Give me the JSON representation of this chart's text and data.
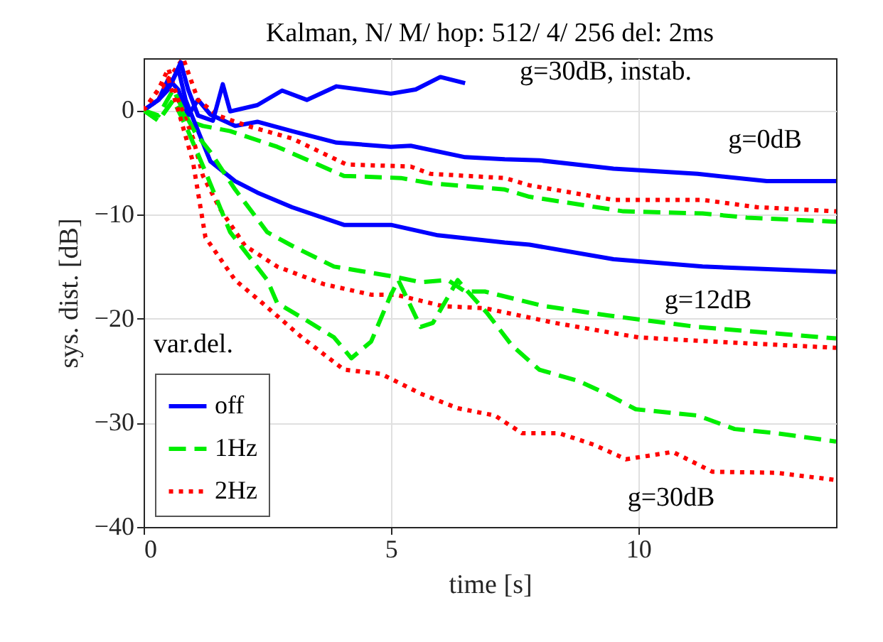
{
  "chart_data": {
    "type": "line",
    "title": "Kalman, N/ M/ hop: 512/ 4/ 256 del: 2ms",
    "xlabel": "time [s]",
    "ylabel": "sys. dist. [dB]",
    "xlim": [
      0,
      14
    ],
    "xticks": [
      0,
      5,
      10
    ],
    "ylim": [
      -40,
      5
    ],
    "yticks": [
      -40,
      -30,
      -20,
      -10,
      0
    ],
    "grid": true,
    "legend": "bottom left",
    "marker": "none",
    "annotations": [
      "g=30dB, instab.",
      "g=0dB",
      "g=12dB",
      "g=30dB",
      "var.del."
    ],
    "series": [
      {
        "name": "off",
        "color": "#0000ff",
        "line_style": "solid",
        "x": [
          0,
          0.3,
          0.5,
          0.7,
          0.9,
          1.1,
          1.35,
          1.85,
          2.3,
          3,
          3.9,
          5,
          5.4,
          6.5,
          7.3,
          8,
          9.5,
          11.2,
          12.6,
          14
        ],
        "values": [
          0,
          1,
          3,
          2,
          -0.5,
          1,
          -0.4,
          -1.5,
          -1.1,
          -2,
          -3.1,
          -3.5,
          -3.4,
          -4.5,
          -4.7,
          -4.8,
          -5.6,
          -6.1,
          -6.8,
          -6.8
        ]
      },
      {
        "name": "1Hz",
        "color": "#00ee00",
        "line_style": "dashed",
        "x": [
          0,
          0.3,
          0.6,
          0.9,
          1.2,
          1.75,
          2.7,
          4.05,
          5.2,
          5.8,
          7.3,
          7.8,
          9.7,
          11.3,
          12.2,
          14
        ],
        "values": [
          0,
          -1,
          1,
          -1,
          -1.5,
          -2,
          -3.5,
          -6.3,
          -6.5,
          -7,
          -7.6,
          -8.3,
          -9.7,
          -9.9,
          -10.3,
          -10.7
        ]
      },
      {
        "name": "2Hz",
        "color": "#ff0000",
        "line_style": "dotted",
        "x": [
          0,
          0.3,
          0.5,
          0.8,
          1.1,
          1.5,
          2.1,
          3,
          4.1,
          5.4,
          5.8,
          7.3,
          7.8,
          9.5,
          11.3,
          12.4,
          14
        ],
        "values": [
          0,
          1,
          3,
          5,
          1,
          -0.5,
          -1.5,
          -2.7,
          -5.2,
          -5.4,
          -6.1,
          -6.5,
          -7.2,
          -8.6,
          -8.6,
          -9.3,
          -9.7
        ]
      },
      {
        "color": "#0000ff",
        "line_style": "solid",
        "x": [
          0,
          0.3,
          0.5,
          0.7,
          0.85,
          1,
          1.35,
          1.85,
          2.3,
          3,
          4.05,
          5,
          5.95,
          7.3,
          7.8,
          9.5,
          11.3,
          14
        ],
        "values": [
          0,
          1,
          2,
          4,
          1,
          -0.8,
          -4.9,
          -6.8,
          -7.9,
          -9.3,
          -11,
          -11,
          -12,
          -12.7,
          -12.9,
          -14.3,
          -15,
          -15.5
        ]
      },
      {
        "color": "#00ee00",
        "line_style": "dashed",
        "x": [
          0,
          0.3,
          0.6,
          0.8,
          1.05,
          1.35,
          1.85,
          2.5,
          3,
          3.85,
          5.1,
          5.6,
          6.15,
          6.5,
          6.9,
          8.1,
          9.4,
          11.2,
          14
        ],
        "values": [
          0,
          -0.5,
          2,
          0,
          -2.2,
          -4,
          -7.6,
          -11.7,
          -13,
          -15,
          -16,
          -16.5,
          -16.3,
          -17.4,
          -17.4,
          -18.8,
          -19.7,
          -20.8,
          -21.9
        ]
      },
      {
        "color": "#ff0000",
        "line_style": "dotted",
        "x": [
          0,
          0.3,
          0.5,
          0.7,
          1,
          1.2,
          1.55,
          2.05,
          2.7,
          3.65,
          4.6,
          5.1,
          6.05,
          6.9,
          8.3,
          10,
          11.5,
          14
        ],
        "values": [
          0,
          2,
          4,
          1,
          -2.7,
          -6.3,
          -9.5,
          -13,
          -15,
          -16.7,
          -17.7,
          -17.7,
          -18.8,
          -19,
          -20.4,
          -21.8,
          -22.2,
          -22.8
        ]
      },
      {
        "color": "#0000ff",
        "line_style": "solid",
        "x": [
          0,
          0.3,
          0.6,
          0.75,
          0.9,
          1.1,
          1.4,
          1.6,
          1.75,
          2.3,
          2.8,
          3.3,
          3.9,
          5,
          5.5,
          6,
          6.5
        ],
        "values": [
          0,
          1,
          3,
          4.6,
          2,
          -0.5,
          -1,
          2.5,
          -0.1,
          0.5,
          1.9,
          1,
          2.3,
          1.6,
          2,
          3.2,
          2.6
        ]
      },
      {
        "color": "#00ee00",
        "line_style": "dashed",
        "x": [
          0,
          0.3,
          0.6,
          0.9,
          1.25,
          1.75,
          2.5,
          2.7,
          3.2,
          3.85,
          4.2,
          4.6,
          5,
          5.15,
          5.6,
          5.85,
          6.35,
          6.95,
          7.45,
          8,
          8.8,
          9.35,
          9.95,
          11.2,
          11.95,
          12.8,
          14
        ],
        "values": [
          0,
          -1,
          1,
          -2,
          -5.9,
          -11.7,
          -16.3,
          -18.5,
          -19.9,
          -21.8,
          -23.8,
          -22.2,
          -17.7,
          -16.3,
          -20.8,
          -20.4,
          -16.3,
          -19.5,
          -22.6,
          -24.9,
          -26,
          -27.2,
          -28.7,
          -29.3,
          -30.6,
          -31,
          -31.8
        ]
      },
      {
        "color": "#ff0000",
        "line_style": "dotted",
        "x": [
          0,
          0.3,
          0.5,
          0.7,
          1,
          1.25,
          1.85,
          2.4,
          3.2,
          4.05,
          4.8,
          5.6,
          6.35,
          7.1,
          7.65,
          8.4,
          9.1,
          9.75,
          10.7,
          11.5,
          12.8,
          14
        ],
        "values": [
          0,
          2,
          3,
          0,
          -5,
          -12.2,
          -16.3,
          -18.5,
          -21.8,
          -24.9,
          -25.3,
          -27.2,
          -28.6,
          -29.3,
          -31,
          -31,
          -32.1,
          -33.5,
          -32.8,
          -34.7,
          -34.8,
          -35.5
        ]
      }
    ]
  }
}
